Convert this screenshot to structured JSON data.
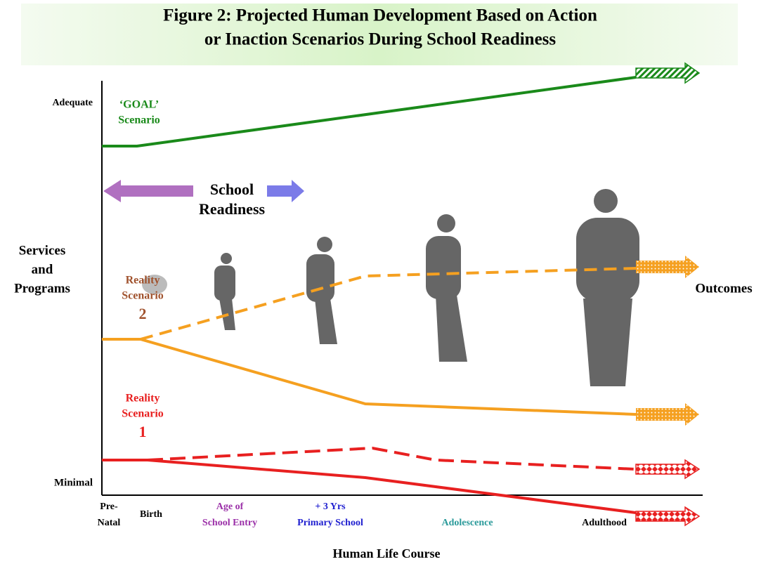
{
  "title": [
    "Figure 2:  Projected Human Development Based on Action",
    "or Inaction Scenarios During School Readiness"
  ],
  "y_axis": {
    "label": [
      "Services",
      "and",
      "Programs"
    ],
    "top": "Adequate",
    "bottom": "Minimal"
  },
  "x_axis": {
    "label": "Human Life Course",
    "stages": [
      [
        "Pre-",
        "Natal"
      ],
      [
        "Birth"
      ],
      [
        "Age of",
        "School Entry"
      ],
      [
        "+ 3 Yrs",
        "Primary School"
      ],
      [
        "Adolescence"
      ],
      [
        "Adulthood"
      ]
    ]
  },
  "scenarios": {
    "goal": [
      "‘GOAL’",
      "Scenario"
    ],
    "reality_2": [
      "Reality",
      "Scenario",
      "2"
    ],
    "reality_1": [
      "Reality",
      "Scenario",
      "1"
    ]
  },
  "school_readiness": [
    "School",
    "Readiness"
  ],
  "outcomes": "Outcomes"
}
